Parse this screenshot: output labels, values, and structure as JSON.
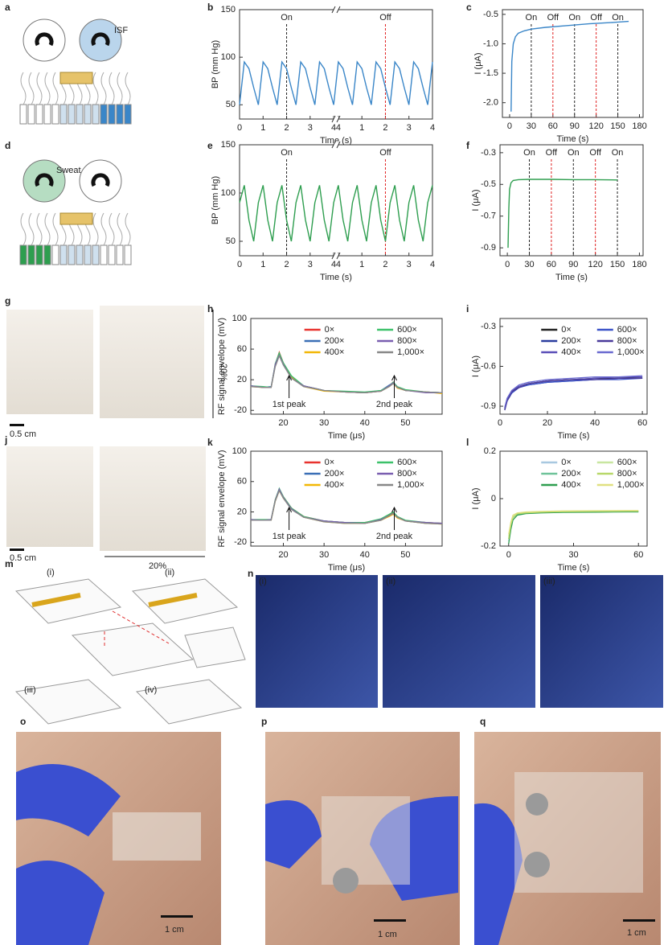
{
  "figure": {
    "panel_labels": [
      "a",
      "b",
      "c",
      "d",
      "e",
      "f",
      "g",
      "h",
      "i",
      "j",
      "k",
      "l",
      "m",
      "n",
      "o",
      "p",
      "q"
    ],
    "annotations": [
      "ISF",
      "Sweat",
      "20%",
      "0.5 cm",
      "0.5 cm",
      "20%",
      "(i)",
      "(ii)",
      "(iii)",
      "(iv)",
      "(i)",
      "(ii)",
      "(iii)",
      "1 cm",
      "1 cm",
      "1 cm"
    ]
  },
  "chart_data": [
    {
      "type": "line",
      "xlabel": "Time (s)",
      "ylabel": "BP (mm Hg)",
      "color": "#3a86c8",
      "axis_break": true,
      "xlim": [
        0,
        8.2
      ],
      "xticks": [
        0,
        1,
        2,
        3,
        4,
        {
          "value": 4.2,
          "label": "4"
        },
        {
          "value": 5.2,
          "label": "1"
        },
        {
          "value": 6.2,
          "label": "2"
        },
        {
          "value": 7.2,
          "label": "3"
        },
        {
          "value": 8.2,
          "label": "4"
        }
      ],
      "ylim": [
        35,
        150
      ],
      "yticks": [
        50,
        100,
        150
      ],
      "x": [
        0,
        0.2,
        0.4,
        0.6,
        0.8,
        1,
        1.2,
        1.4,
        1.6,
        1.8,
        2,
        2.2,
        2.4,
        2.6,
        2.8,
        3,
        3.2,
        3.4,
        3.6,
        3.8,
        4,
        4.2,
        4.4,
        4.6,
        4.8,
        5,
        5.2,
        5.4,
        5.6,
        5.8,
        6,
        6.2,
        6.4,
        6.6,
        6.8,
        7,
        7.2,
        7.4,
        7.6,
        7.8,
        8,
        8.2
      ],
      "values": [
        50,
        95,
        88,
        68,
        50,
        95,
        88,
        68,
        50,
        95,
        88,
        68,
        50,
        95,
        88,
        68,
        50,
        95,
        88,
        68,
        50,
        95,
        88,
        68,
        50,
        95,
        88,
        68,
        50,
        95,
        88,
        68,
        50,
        95,
        88,
        68,
        50,
        95,
        88,
        68,
        50,
        95
      ],
      "events": [
        {
          "label": "On",
          "x": 2,
          "color": "#222222"
        },
        {
          "label": "Off",
          "x": 6.2,
          "color": "#e02020"
        }
      ]
    },
    {
      "type": "line",
      "xlabel": "Time (s)",
      "ylabel": "I (μA)",
      "color": "#3a86c8",
      "xlim": [
        -10,
        185
      ],
      "xticks": [
        0,
        30,
        60,
        90,
        120,
        150,
        180
      ],
      "ylim": [
        -2.25,
        -0.42
      ],
      "yticks": [
        {
          "value": -2,
          "label": "-2.0"
        },
        -1.5,
        {
          "value": -1,
          "label": "-1.0"
        },
        -0.5
      ],
      "x": [
        2,
        3,
        5,
        8,
        12,
        20,
        30,
        50,
        80,
        110,
        140,
        165
      ],
      "values": [
        -2.15,
        -1.3,
        -1.0,
        -0.88,
        -0.82,
        -0.78,
        -0.75,
        -0.72,
        -0.69,
        -0.66,
        -0.64,
        -0.62
      ],
      "events": [
        {
          "label": "On",
          "x": 30,
          "color": "#222222"
        },
        {
          "label": "Off",
          "x": 60,
          "color": "#e02020"
        },
        {
          "label": "On",
          "x": 90,
          "color": "#222222"
        },
        {
          "label": "Off",
          "x": 120,
          "color": "#e02020"
        },
        {
          "label": "On",
          "x": 150,
          "color": "#222222"
        }
      ]
    },
    {
      "type": "line",
      "xlabel": "Time (s)",
      "ylabel": "BP (mm Hg)",
      "color": "#2e9e4f",
      "axis_break": true,
      "xlim": [
        0,
        8.2
      ],
      "xticks": [
        0,
        1,
        2,
        3,
        4,
        {
          "value": 4.2,
          "label": "4"
        },
        {
          "value": 5.2,
          "label": "1"
        },
        {
          "value": 6.2,
          "label": "2"
        },
        {
          "value": 7.2,
          "label": "3"
        },
        {
          "value": 8.2,
          "label": "4"
        }
      ],
      "ylim": [
        35,
        150
      ],
      "yticks": [
        50,
        100,
        150
      ],
      "x": [
        0,
        0.2,
        0.4,
        0.6,
        0.8,
        1,
        1.2,
        1.4,
        1.6,
        1.8,
        2,
        2.2,
        2.4,
        2.6,
        2.8,
        3,
        3.2,
        3.4,
        3.6,
        3.8,
        4,
        4.2,
        4.4,
        4.6,
        4.8,
        5,
        5.2,
        5.4,
        5.6,
        5.8,
        6,
        6.2,
        6.4,
        6.6,
        6.8,
        7,
        7.2,
        7.4,
        7.6,
        7.8,
        8,
        8.2
      ],
      "values": [
        90,
        108,
        72,
        50,
        90,
        108,
        72,
        50,
        90,
        108,
        72,
        50,
        90,
        108,
        72,
        50,
        90,
        108,
        72,
        50,
        90,
        108,
        72,
        50,
        90,
        108,
        72,
        50,
        90,
        108,
        72,
        50,
        90,
        108,
        72,
        50,
        90,
        108,
        72,
        50,
        90,
        108
      ],
      "events": [
        {
          "label": "On",
          "x": 2,
          "color": "#222222"
        },
        {
          "label": "Off",
          "x": 6.2,
          "color": "#e02020"
        }
      ]
    },
    {
      "type": "line",
      "xlabel": "Time (s)",
      "ylabel": "I (μA)",
      "color": "#2e9e4f",
      "xlim": [
        -10,
        185
      ],
      "xticks": [
        0,
        30,
        60,
        90,
        120,
        150,
        180
      ],
      "ylim": [
        -0.95,
        -0.25
      ],
      "yticks": [
        -0.9,
        -0.7,
        -0.5,
        -0.3
      ],
      "x": [
        1,
        2,
        3,
        5,
        8,
        15,
        30,
        60,
        90,
        120,
        150
      ],
      "values": [
        -0.9,
        -0.65,
        -0.53,
        -0.49,
        -0.475,
        -0.47,
        -0.468,
        -0.468,
        -0.47,
        -0.47,
        -0.472
      ],
      "events": [
        {
          "label": "On",
          "x": 30,
          "color": "#222222"
        },
        {
          "label": "Off",
          "x": 60,
          "color": "#e02020"
        },
        {
          "label": "On",
          "x": 90,
          "color": "#222222"
        },
        {
          "label": "Off",
          "x": 120,
          "color": "#e02020"
        },
        {
          "label": "On",
          "x": 150,
          "color": "#222222"
        }
      ]
    },
    {
      "type": "multiline",
      "xlabel": "Time (μs)",
      "ylabel": "RF signal envelope (mV)",
      "legend": "upper right",
      "xlim": [
        12,
        59
      ],
      "xticks": [
        20,
        30,
        40,
        50
      ],
      "ylim": [
        -25,
        100
      ],
      "yticks": [
        -20,
        20,
        60,
        100
      ],
      "x": [
        12,
        15,
        17,
        18,
        19,
        20,
        22,
        25,
        30,
        35,
        40,
        44,
        46,
        47,
        48,
        50,
        55,
        59
      ],
      "annotations": [
        "1st peak",
        "2nd peak"
      ],
      "series": [
        {
          "name": "0×",
          "color": "#e8322e",
          "values": [
            12,
            10,
            10,
            40,
            56,
            42,
            24,
            12,
            6,
            4,
            3,
            5,
            12,
            17,
            10,
            6,
            4,
            3
          ]
        },
        {
          "name": "200×",
          "color": "#3b6fb6",
          "values": [
            12,
            10,
            11,
            38,
            54,
            41,
            23,
            12,
            6,
            4,
            3,
            6,
            13,
            16,
            10,
            6,
            4,
            3
          ]
        },
        {
          "name": "400×",
          "color": "#f2b705",
          "values": [
            11,
            10,
            10,
            39,
            53,
            40,
            23,
            11,
            5,
            4,
            3,
            5,
            11,
            15,
            9,
            6,
            4,
            2
          ]
        },
        {
          "name": "600×",
          "color": "#3cc16a",
          "values": [
            12,
            11,
            10,
            41,
            55,
            42,
            25,
            12,
            6,
            5,
            4,
            6,
            12,
            17,
            11,
            7,
            4,
            3
          ]
        },
        {
          "name": "800×",
          "color": "#7a5fb0",
          "values": [
            12,
            10,
            10,
            40,
            52,
            40,
            22,
            12,
            6,
            4,
            3,
            5,
            12,
            16,
            10,
            6,
            3,
            3
          ]
        },
        {
          "name": "1,000×",
          "color": "#888888",
          "values": [
            11,
            10,
            10,
            37,
            51,
            39,
            22,
            11,
            6,
            4,
            3,
            5,
            11,
            15,
            10,
            6,
            4,
            3
          ]
        }
      ]
    },
    {
      "type": "multiline",
      "xlabel": "Time (s)",
      "ylabel": "I (μA)",
      "legend": "upper right",
      "xlim": [
        0,
        62
      ],
      "xticks": [
        0,
        20,
        40,
        60
      ],
      "ylim": [
        -0.96,
        -0.24
      ],
      "yticks": [
        -0.9,
        -0.6,
        -0.3
      ],
      "x": [
        2,
        3,
        5,
        8,
        12,
        20,
        30,
        40,
        50,
        60
      ],
      "series": [
        {
          "name": "0×",
          "color": "#222222",
          "values": [
            -0.92,
            -0.85,
            -0.79,
            -0.75,
            -0.73,
            -0.71,
            -0.7,
            -0.69,
            -0.69,
            -0.68
          ]
        },
        {
          "name": "200×",
          "color": "#2a3c9e",
          "values": [
            -0.93,
            -0.86,
            -0.8,
            -0.76,
            -0.74,
            -0.72,
            -0.71,
            -0.7,
            -0.69,
            -0.69
          ]
        },
        {
          "name": "400×",
          "color": "#5a4fb8",
          "values": [
            -0.91,
            -0.84,
            -0.78,
            -0.75,
            -0.73,
            -0.71,
            -0.7,
            -0.69,
            -0.68,
            -0.68
          ]
        },
        {
          "name": "600×",
          "color": "#3a52c8",
          "values": [
            -0.92,
            -0.85,
            -0.8,
            -0.76,
            -0.74,
            -0.72,
            -0.71,
            -0.7,
            -0.7,
            -0.69
          ]
        },
        {
          "name": "800×",
          "color": "#4a3a9a",
          "values": [
            -0.93,
            -0.86,
            -0.79,
            -0.76,
            -0.73,
            -0.71,
            -0.7,
            -0.7,
            -0.69,
            -0.69
          ]
        },
        {
          "name": "1,000×",
          "color": "#6a6ad0",
          "values": [
            -0.91,
            -0.84,
            -0.78,
            -0.74,
            -0.72,
            -0.7,
            -0.69,
            -0.68,
            -0.68,
            -0.67
          ]
        }
      ]
    },
    {
      "type": "multiline",
      "xlabel": "Time (μs)",
      "ylabel": "RF signal envelope (mV)",
      "legend": "upper right",
      "xlim": [
        12,
        59
      ],
      "xticks": [
        20,
        30,
        40,
        50
      ],
      "ylim": [
        -25,
        100
      ],
      "yticks": [
        -20,
        20,
        60,
        100
      ],
      "x": [
        12,
        15,
        17,
        18,
        19,
        20,
        22,
        25,
        30,
        35,
        40,
        44,
        46,
        47,
        48,
        50,
        55,
        59
      ],
      "annotations": [
        "1st peak",
        "2nd peak"
      ],
      "series": [
        {
          "name": "0×",
          "color": "#e8322e",
          "values": [
            10,
            9,
            10,
            36,
            50,
            40,
            25,
            14,
            8,
            6,
            6,
            10,
            16,
            19,
            14,
            8,
            6,
            5
          ]
        },
        {
          "name": "200×",
          "color": "#3b6fb6",
          "values": [
            10,
            9,
            10,
            35,
            49,
            39,
            24,
            13,
            8,
            6,
            5,
            9,
            15,
            18,
            13,
            8,
            5,
            5
          ]
        },
        {
          "name": "400×",
          "color": "#f2b705",
          "values": [
            9,
            9,
            9,
            34,
            48,
            38,
            24,
            13,
            7,
            5,
            5,
            9,
            14,
            17,
            12,
            8,
            5,
            4
          ]
        },
        {
          "name": "600×",
          "color": "#3cc16a",
          "values": [
            10,
            10,
            10,
            36,
            51,
            40,
            25,
            14,
            8,
            6,
            6,
            11,
            17,
            20,
            14,
            9,
            6,
            5
          ]
        },
        {
          "name": "800×",
          "color": "#7a5fb0",
          "values": [
            10,
            9,
            10,
            35,
            50,
            39,
            24,
            13,
            8,
            6,
            5,
            10,
            15,
            18,
            13,
            8,
            6,
            5
          ]
        },
        {
          "name": "1,000×",
          "color": "#888888",
          "values": [
            9,
            9,
            9,
            34,
            48,
            38,
            23,
            13,
            7,
            5,
            5,
            9,
            15,
            18,
            13,
            8,
            5,
            4
          ]
        }
      ]
    },
    {
      "type": "multiline",
      "xlabel": "Time (s)",
      "ylabel": "I (μA)",
      "legend": "upper right",
      "xlim": [
        -4,
        64
      ],
      "xticks": [
        0,
        30,
        60
      ],
      "ylim": [
        -0.2,
        0.2
      ],
      "yticks": [
        -0.2,
        0,
        0.2
      ],
      "x": [
        0,
        1,
        2,
        4,
        8,
        15,
        25,
        40,
        55,
        60
      ],
      "series": [
        {
          "name": "0×",
          "color": "#a8c8e0",
          "values": [
            -0.18,
            -0.12,
            -0.08,
            -0.065,
            -0.06,
            -0.058,
            -0.056,
            -0.055,
            -0.054,
            -0.054
          ]
        },
        {
          "name": "200×",
          "color": "#6fc39a",
          "values": [
            -0.17,
            -0.11,
            -0.08,
            -0.066,
            -0.061,
            -0.059,
            -0.057,
            -0.056,
            -0.055,
            -0.055
          ]
        },
        {
          "name": "400×",
          "color": "#2e9e4f",
          "values": [
            -0.19,
            -0.13,
            -0.09,
            -0.07,
            -0.063,
            -0.06,
            -0.058,
            -0.057,
            -0.056,
            -0.056
          ]
        },
        {
          "name": "600×",
          "color": "#c8e6a0",
          "values": [
            -0.16,
            -0.1,
            -0.075,
            -0.062,
            -0.058,
            -0.056,
            -0.054,
            -0.053,
            -0.052,
            -0.052
          ]
        },
        {
          "name": "800×",
          "color": "#b8d86a",
          "values": [
            -0.17,
            -0.11,
            -0.08,
            -0.064,
            -0.06,
            -0.057,
            -0.055,
            -0.054,
            -0.053,
            -0.053
          ]
        },
        {
          "name": "1,000×",
          "color": "#e0e080",
          "values": [
            -0.15,
            -0.1,
            -0.07,
            -0.06,
            -0.056,
            -0.054,
            -0.052,
            -0.051,
            -0.05,
            -0.05
          ]
        }
      ]
    }
  ]
}
